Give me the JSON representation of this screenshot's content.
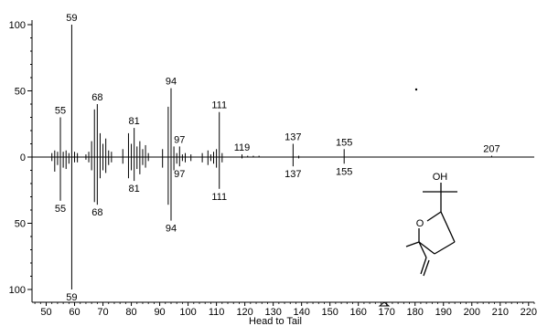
{
  "chart_data": {
    "type": "bar",
    "title": "",
    "xlabel": "Head to Tail",
    "ylabel": "",
    "xlim": [
      45,
      222
    ],
    "ylim": [
      -100,
      100
    ],
    "xticks": [
      50,
      60,
      70,
      80,
      90,
      100,
      110,
      120,
      130,
      140,
      150,
      160,
      170,
      180,
      190,
      200,
      210,
      220
    ],
    "yticks": [
      {
        "value": 100,
        "label": "100"
      },
      {
        "value": 50,
        "label": "50"
      },
      {
        "value": 0,
        "label": "0"
      },
      {
        "value": -50,
        "label": "50"
      },
      {
        "value": -100,
        "label": "100"
      }
    ],
    "series": [
      {
        "role": "head",
        "peaks": [
          [
            52,
            3
          ],
          [
            53,
            5
          ],
          [
            54,
            4
          ],
          [
            55,
            30
          ],
          [
            56,
            4
          ],
          [
            57,
            5
          ],
          [
            58,
            3
          ],
          [
            59,
            100
          ],
          [
            60,
            4
          ],
          [
            61,
            3
          ],
          [
            64,
            2
          ],
          [
            65,
            4
          ],
          [
            66,
            12
          ],
          [
            67,
            36
          ],
          [
            68,
            40
          ],
          [
            69,
            18
          ],
          [
            70,
            10
          ],
          [
            71,
            14
          ],
          [
            72,
            5
          ],
          [
            73,
            4
          ],
          [
            77,
            6
          ],
          [
            79,
            18
          ],
          [
            80,
            10
          ],
          [
            81,
            22
          ],
          [
            82,
            8
          ],
          [
            83,
            12
          ],
          [
            84,
            6
          ],
          [
            85,
            9
          ],
          [
            86,
            3
          ],
          [
            91,
            6
          ],
          [
            93,
            38
          ],
          [
            94,
            52
          ],
          [
            95,
            8
          ],
          [
            96,
            3
          ],
          [
            97,
            8
          ],
          [
            98,
            2
          ],
          [
            99,
            3
          ],
          [
            101,
            2
          ],
          [
            105,
            3
          ],
          [
            107,
            5
          ],
          [
            108,
            2
          ],
          [
            109,
            4
          ],
          [
            110,
            6
          ],
          [
            111,
            34
          ],
          [
            112,
            3
          ],
          [
            119,
            2
          ],
          [
            121,
            1
          ],
          [
            123,
            1
          ],
          [
            125,
            1
          ],
          [
            137,
            10
          ],
          [
            139,
            1
          ],
          [
            155,
            6
          ],
          [
            207,
            1
          ]
        ],
        "labels": [
          55,
          59,
          68,
          81,
          94,
          97,
          111,
          119,
          137,
          155,
          207
        ]
      },
      {
        "role": "tail",
        "peaks": [
          [
            52,
            3
          ],
          [
            53,
            11
          ],
          [
            54,
            6
          ],
          [
            55,
            33
          ],
          [
            56,
            8
          ],
          [
            57,
            9
          ],
          [
            58,
            5
          ],
          [
            59,
            100
          ],
          [
            60,
            4
          ],
          [
            61,
            4
          ],
          [
            64,
            2
          ],
          [
            65,
            4
          ],
          [
            66,
            10
          ],
          [
            67,
            34
          ],
          [
            68,
            36
          ],
          [
            69,
            16
          ],
          [
            70,
            10
          ],
          [
            71,
            12
          ],
          [
            72,
            6
          ],
          [
            73,
            4
          ],
          [
            77,
            5
          ],
          [
            79,
            16
          ],
          [
            80,
            10
          ],
          [
            81,
            18
          ],
          [
            82,
            9
          ],
          [
            83,
            13
          ],
          [
            84,
            6
          ],
          [
            85,
            8
          ],
          [
            86,
            3
          ],
          [
            91,
            8
          ],
          [
            93,
            36
          ],
          [
            94,
            48
          ],
          [
            95,
            10
          ],
          [
            96,
            5
          ],
          [
            97,
            7
          ],
          [
            98,
            3
          ],
          [
            99,
            4
          ],
          [
            101,
            3
          ],
          [
            105,
            4
          ],
          [
            107,
            6
          ],
          [
            108,
            3
          ],
          [
            109,
            5
          ],
          [
            110,
            8
          ],
          [
            111,
            24
          ],
          [
            112,
            4
          ],
          [
            119,
            1
          ],
          [
            137,
            7
          ],
          [
            139,
            1
          ],
          [
            155,
            5
          ]
        ],
        "labels": [
          55,
          59,
          68,
          81,
          94,
          97,
          111,
          137,
          155
        ]
      }
    ]
  },
  "molecule": {
    "atom_labels": [
      "OH",
      "O"
    ]
  }
}
